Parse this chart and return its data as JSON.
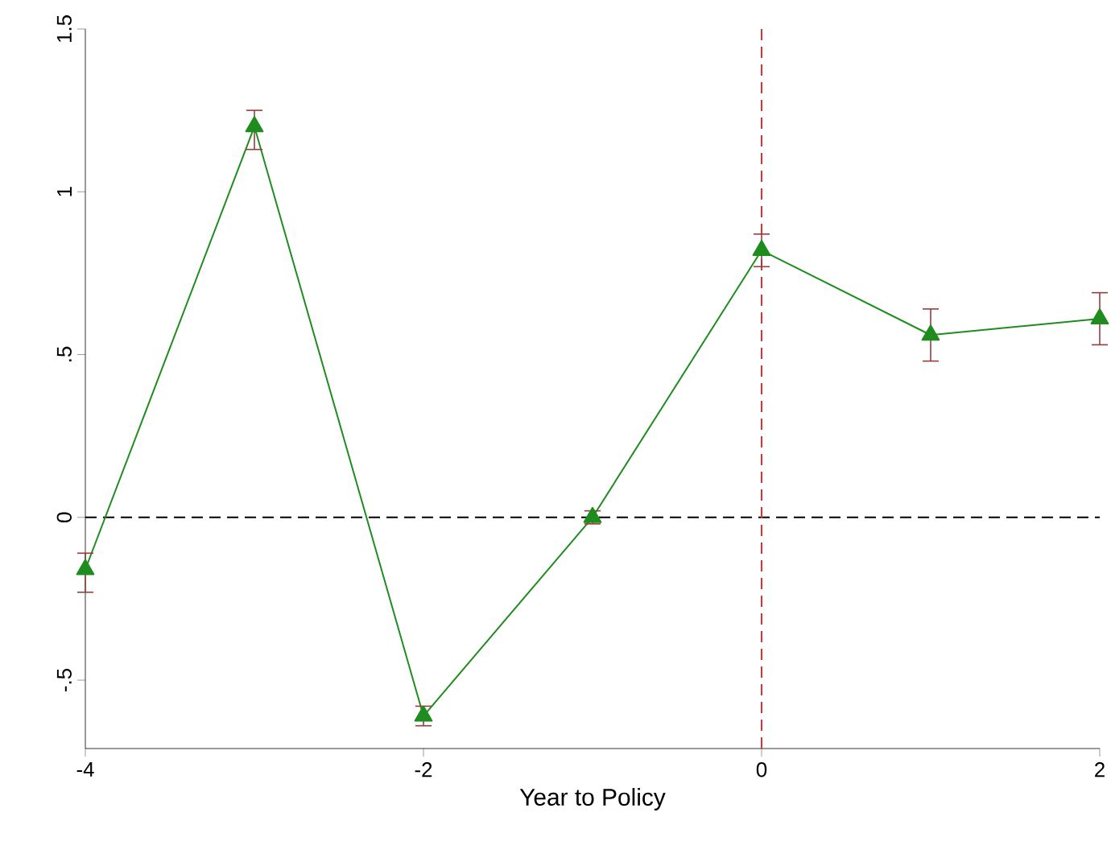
{
  "chart_data": {
    "type": "line",
    "xlabel": "Year to Policy",
    "x": [
      -4,
      -3,
      -2,
      -1,
      0,
      1,
      2
    ],
    "series": [
      {
        "color": "#1e8c1e",
        "values": [
          -0.16,
          1.2,
          -0.61,
          0.0,
          0.82,
          0.56,
          0.61
        ],
        "errors": [
          [
            -0.23,
            -0.11
          ],
          [
            1.13,
            1.25
          ],
          [
            -0.64,
            -0.58
          ],
          [
            -0.02,
            0.02
          ],
          [
            0.77,
            0.87
          ],
          [
            0.48,
            0.64
          ],
          [
            0.53,
            0.69
          ]
        ],
        "marker": "triangle",
        "line_style": "solid"
      }
    ],
    "xlim": [
      -4,
      2
    ],
    "ylim": [
      -0.71,
      1.5
    ],
    "xticks": [
      -4,
      -2,
      0,
      2
    ],
    "yticks": [
      {
        "value": -0.5,
        "label": "-.5"
      },
      0,
      {
        "value": 0.5,
        "label": ".5"
      },
      1,
      1.5
    ],
    "ref_lines": [
      {
        "axis": "y",
        "value": 0,
        "color": "#000000",
        "line_style": "dashed"
      },
      {
        "axis": "x",
        "value": 0,
        "color": "#e03030",
        "line_style": "dashed"
      }
    ],
    "grid": false
  }
}
